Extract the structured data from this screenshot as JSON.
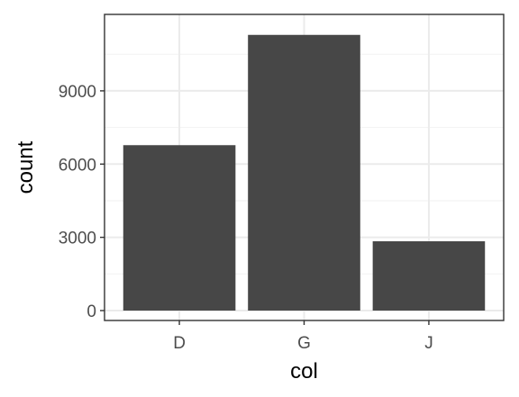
{
  "chart_data": {
    "type": "bar",
    "categories": [
      "D",
      "G",
      "J"
    ],
    "values": [
      6775,
      11292,
      2838
    ],
    "xlabel": "col",
    "ylabel": "count",
    "ylim": [
      -406,
      12131
    ],
    "yticks": [
      0,
      3000,
      6000,
      9000
    ],
    "ytick_labels": [
      "0",
      "3000",
      "6000",
      "9000"
    ],
    "grid": true,
    "legend": "none",
    "colors": {
      "bar": "#474747",
      "grid_major": "#ebebeb",
      "grid_minor": "#f2f2f2",
      "panel_border": "#333333",
      "background": "#ffffff"
    }
  }
}
